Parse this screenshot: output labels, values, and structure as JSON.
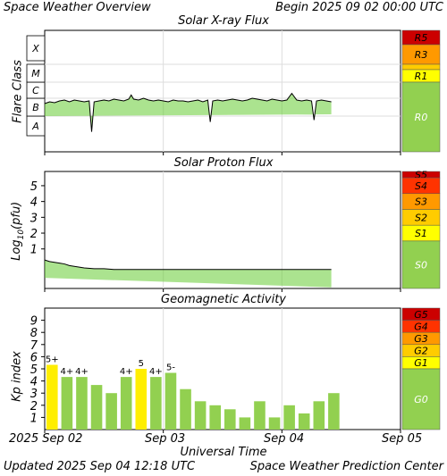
{
  "header": {
    "title": "Space Weather Overview",
    "begin": "Begin 2025 09 02 00:00 UTC"
  },
  "footer": {
    "updated": "Updated 2025 Sep 04 12:18 UTC",
    "center": "Space Weather Prediction Center"
  },
  "colors": {
    "plot_bg": "#ffffff",
    "grid": "#dddddd",
    "flux_line": "#000000",
    "flux_fill": "#66cc33",
    "bar_green": "#92d050",
    "bar_yellow": "#ffee00",
    "scale_r0": "#92d050",
    "scale_g1": "#ffff00",
    "scale_g2": "#ffcc00",
    "scale_g3": "#ff9900",
    "scale_g4": "#ff3300",
    "scale_g5": "#cc0000"
  },
  "chart_data": [
    {
      "type": "line",
      "title": "Solar X-ray Flux",
      "ylabel": "Flare Class",
      "y_categories": [
        "A",
        "B",
        "C",
        "M",
        "X"
      ],
      "x_range_hours": [
        0,
        72
      ],
      "series": [
        {
          "x": [
            0,
            0.5,
            1,
            2,
            3,
            4,
            5,
            6,
            7,
            8,
            9,
            9.5,
            10,
            11,
            12,
            13,
            14,
            15,
            16,
            17,
            17.5,
            18,
            19,
            20,
            21,
            22,
            23,
            24,
            25,
            26,
            27,
            28,
            29,
            30,
            31,
            32,
            33,
            33.5,
            34,
            35,
            36,
            37,
            38,
            39,
            40,
            41,
            42,
            43,
            44,
            45,
            46,
            47,
            48,
            49,
            50,
            51,
            52,
            53,
            54,
            54.5,
            55,
            56,
            57,
            58
          ],
          "y": [
            2.7,
            2.75,
            2.8,
            2.75,
            2.85,
            2.9,
            2.8,
            2.9,
            2.85,
            2.8,
            2.85,
            1.2,
            2.8,
            2.85,
            2.9,
            2.85,
            2.95,
            2.9,
            2.85,
            2.95,
            3.2,
            2.95,
            2.9,
            3.0,
            2.9,
            2.85,
            2.9,
            2.85,
            2.8,
            2.9,
            2.85,
            2.85,
            2.8,
            2.85,
            2.9,
            2.8,
            2.9,
            1.7,
            2.85,
            2.9,
            2.85,
            2.9,
            2.95,
            2.9,
            2.85,
            2.9,
            3.0,
            2.95,
            2.9,
            2.85,
            2.95,
            2.9,
            2.85,
            2.9,
            3.3,
            2.9,
            2.85,
            2.9,
            2.85,
            1.8,
            2.85,
            2.9,
            2.85,
            2.8
          ]
        }
      ],
      "scale": [
        "R5",
        "R3",
        "R1",
        "R0"
      ]
    },
    {
      "type": "line",
      "title": "Solar Proton Flux",
      "ylabel": "Log10(pfu)",
      "y_ticks": [
        1,
        2,
        3,
        4,
        5
      ],
      "ylim": [
        -1.5,
        5.9
      ],
      "x_range_hours": [
        0,
        72
      ],
      "series": [
        {
          "x": [
            0,
            1,
            2,
            3,
            4,
            5,
            6,
            7,
            8,
            10,
            12,
            14,
            16,
            18,
            20,
            22,
            24,
            27,
            30,
            33,
            36,
            39,
            42,
            45,
            48,
            51,
            54,
            58
          ],
          "y": [
            0.3,
            0.2,
            0.15,
            0.1,
            0.05,
            -0.05,
            -0.1,
            -0.15,
            -0.2,
            -0.25,
            -0.25,
            -0.3,
            -0.3,
            -0.3,
            -0.3,
            -0.3,
            -0.3,
            -0.3,
            -0.3,
            -0.3,
            -0.3,
            -0.3,
            -0.3,
            -0.3,
            -0.3,
            -0.3,
            -0.3,
            -0.3
          ]
        }
      ],
      "scale": [
        "S5",
        "S4",
        "S3",
        "S2",
        "S1",
        "S0"
      ]
    },
    {
      "type": "bar",
      "title": "Geomagnetic Activity",
      "ylabel": "Kp index",
      "y_ticks": [
        1,
        2,
        3,
        4,
        5,
        6,
        7,
        8,
        9
      ],
      "ylim": [
        0,
        10
      ],
      "bar_width_hours": 3,
      "values": [
        5.33,
        4.33,
        4.33,
        3.67,
        3.0,
        4.33,
        5.0,
        4.33,
        4.67,
        3.33,
        2.33,
        2.0,
        1.67,
        1.0,
        2.33,
        1.0,
        2.0,
        1.33,
        2.33,
        3.0
      ],
      "labels": [
        "5+",
        "4+",
        "4+",
        "",
        "",
        "4+",
        "5",
        "4+",
        "5-",
        "",
        "",
        "",
        "",
        "",
        "",
        "",
        "",
        "",
        "",
        ""
      ],
      "highlight": [
        true,
        false,
        false,
        false,
        false,
        false,
        true,
        false,
        false,
        false,
        false,
        false,
        false,
        false,
        false,
        false,
        false,
        false,
        false,
        false
      ],
      "scale": [
        "G5",
        "G4",
        "G3",
        "G2",
        "G1",
        "G0"
      ],
      "xlabel": "Universal Time",
      "x_tick_labels": [
        "2025 Sep 02",
        "Sep 03",
        "Sep 04",
        "Sep 05"
      ]
    }
  ]
}
